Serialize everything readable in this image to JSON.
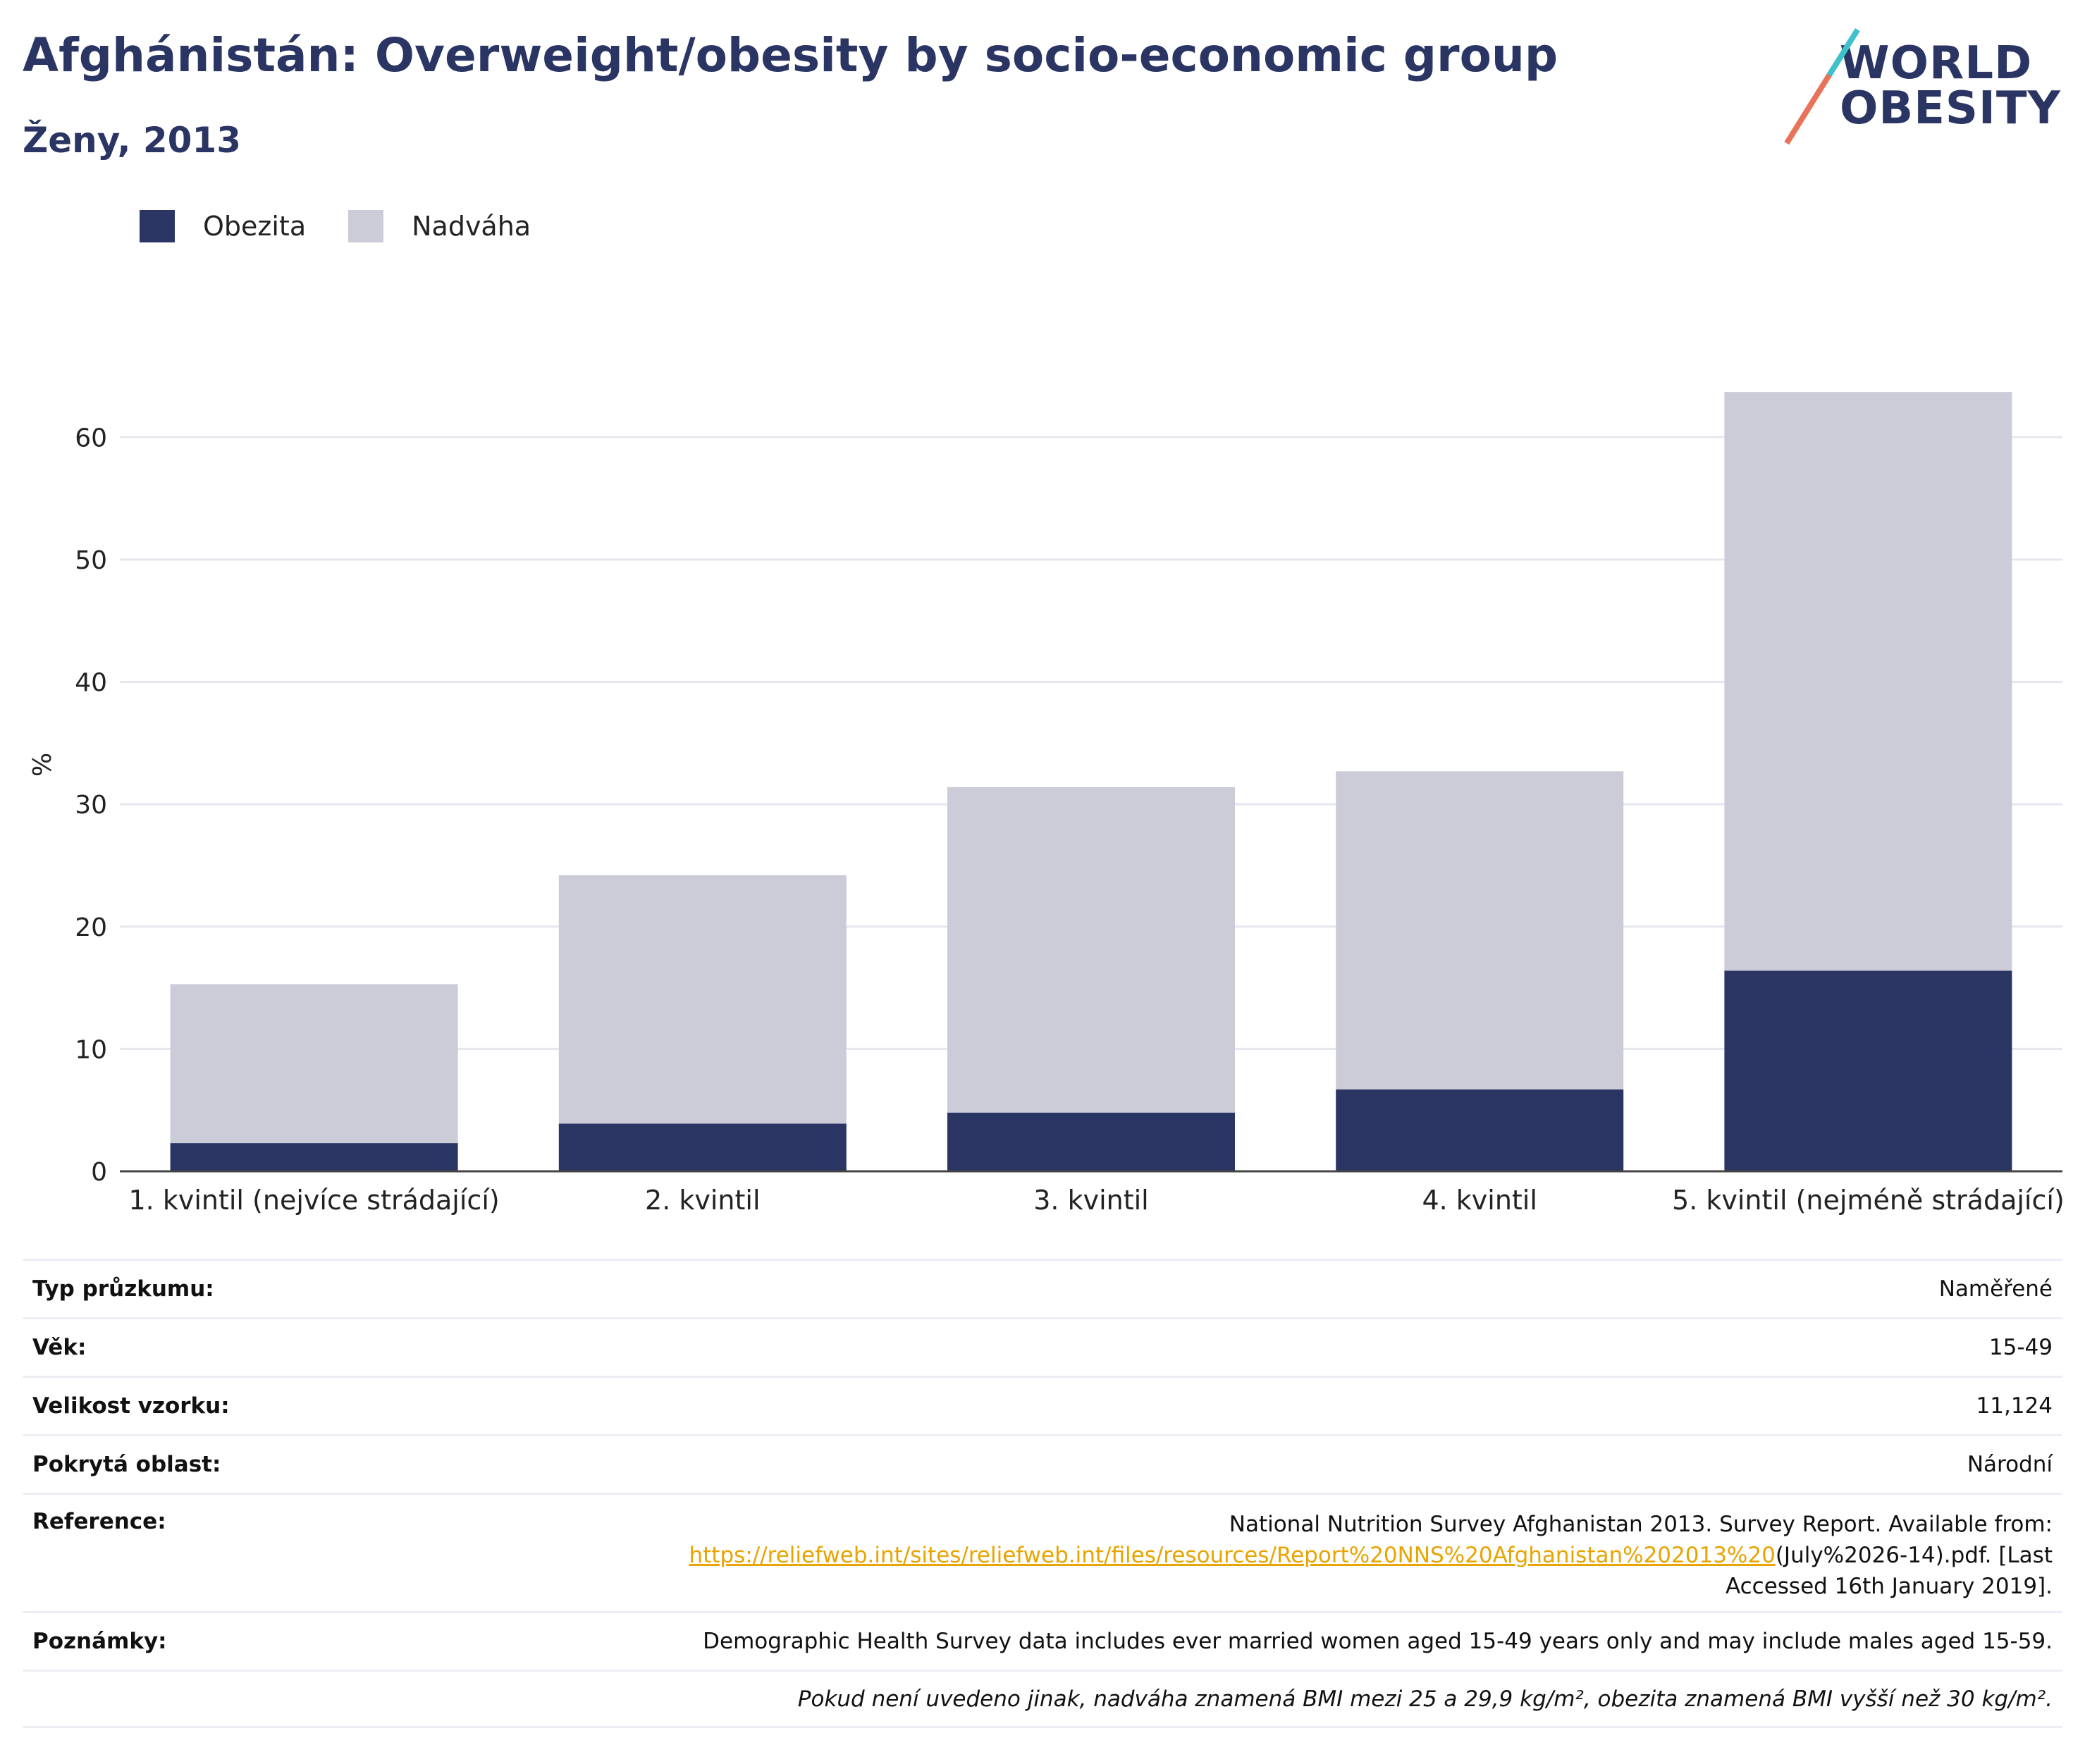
{
  "header": {
    "title": "Afghánistán: Overweight/obesity by socio-economic group",
    "subtitle": "Ženy, 2013"
  },
  "logo": {
    "line1": "WORLD",
    "line2": "OBESITY"
  },
  "legend": [
    {
      "label": "Obezita",
      "color": "#2a3564"
    },
    {
      "label": "Nadváha",
      "color": "#cbccd8"
    }
  ],
  "chart_data": {
    "type": "bar",
    "stacked": true,
    "categories": [
      "1. kvintil (nejvíce strádající)",
      "2. kvintil",
      "3. kvintil",
      "4. kvintil",
      "5. kvintil (nejméně strádající)"
    ],
    "series": [
      {
        "name": "Obezita",
        "values": [
          2.3,
          3.9,
          4.8,
          6.7,
          16.4
        ],
        "color": "#2a3564"
      },
      {
        "name": "Nadváha",
        "values": [
          13.0,
          20.3,
          26.6,
          26.0,
          47.3
        ],
        "color": "#cbccd8"
      }
    ],
    "ylabel": "%",
    "yticks": [
      0,
      10,
      20,
      30,
      40,
      50,
      60
    ],
    "ylim": [
      0,
      65
    ],
    "grid": true,
    "legend_position": "top-left"
  },
  "info": {
    "rows": [
      {
        "key": "Typ průzkumu:",
        "value": "Naměřené"
      },
      {
        "key": "Věk:",
        "value": "15-49"
      },
      {
        "key": "Velikost vzorku:",
        "value": "11,124"
      },
      {
        "key": "Pokrytá oblast:",
        "value": "Národní"
      }
    ],
    "reference": {
      "key": "Reference:",
      "line1": "National Nutrition Survey Afghanistan 2013. Survey Report. Available from:",
      "link": "https://reliefweb.int/sites/reliefweb.int/files/resources/Report%20NNS%20Afghanistan%202013%20",
      "after_link": "(July%2026-14).pdf. [Last",
      "line3": "Accessed 16th January 2019]."
    },
    "notes": {
      "key": "Poznámky:",
      "value": "Demographic Health Survey data includes ever married women aged 15-49 years only and may include males aged 15-59."
    },
    "footnote": "Pokud není uvedeno jinak, nadváha znamená BMI mezi 25 a 29,9 kg/m², obezita znamená BMI vyšší než 30 kg/m²."
  }
}
